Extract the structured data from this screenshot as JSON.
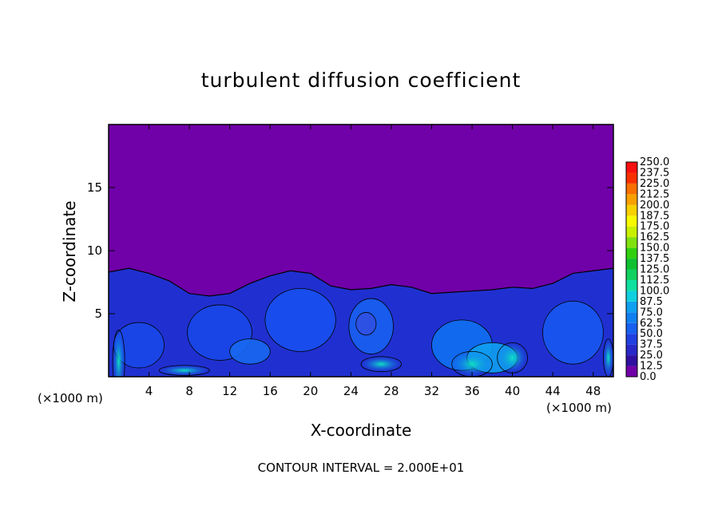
{
  "chart_data": {
    "type": "heatmap",
    "title": "turbulent diffusion coefficient",
    "xlabel": "X-coordinate",
    "ylabel": "Z-coordinate",
    "x_unit": "(×1000 m)",
    "xlim": [
      0,
      50
    ],
    "ylim": [
      0,
      20
    ],
    "xticks": [
      4,
      8,
      12,
      16,
      20,
      24,
      28,
      32,
      36,
      40,
      44,
      48
    ],
    "yticks": [
      5,
      10,
      15
    ],
    "contour_interval_text": "CONTOUR INTERVAL = 2.000E+01",
    "colorbar": {
      "levels": [
        "0.0",
        "12.5",
        "25.0",
        "37.5",
        "50.0",
        "62.5",
        "75.0",
        "87.5",
        "100.0",
        "112.5",
        "125.0",
        "137.5",
        "150.0",
        "162.5",
        "175.0",
        "187.5",
        "200.0",
        "212.5",
        "225.0",
        "237.5",
        "250.0"
      ],
      "colors": [
        "#7000a8",
        "#2f10a0",
        "#2828c8",
        "#2040e0",
        "#1860f0",
        "#1080f0",
        "#10a0f0",
        "#10d0e0",
        "#10e0a0",
        "#10d060",
        "#10c030",
        "#30d010",
        "#80e010",
        "#c8f000",
        "#f8f800",
        "#f8d000",
        "#f8a000",
        "#f87000",
        "#f83000",
        "#f81010"
      ]
    },
    "background_value_color": "#7000a8",
    "turbulent_layer_top_z_samples": {
      "x": [
        0,
        2,
        4,
        6,
        8,
        10,
        12,
        14,
        16,
        18,
        20,
        22,
        24,
        26,
        28,
        30,
        32,
        34,
        36,
        38,
        40,
        42,
        44,
        46,
        48,
        50
      ],
      "z": [
        8.3,
        8.6,
        8.2,
        7.6,
        6.6,
        6.4,
        6.6,
        7.4,
        8.0,
        8.4,
        8.2,
        7.2,
        6.9,
        7.0,
        7.3,
        7.1,
        6.6,
        6.7,
        6.8,
        6.9,
        7.1,
        7.0,
        7.4,
        8.2,
        8.4,
        8.6
      ]
    }
  }
}
